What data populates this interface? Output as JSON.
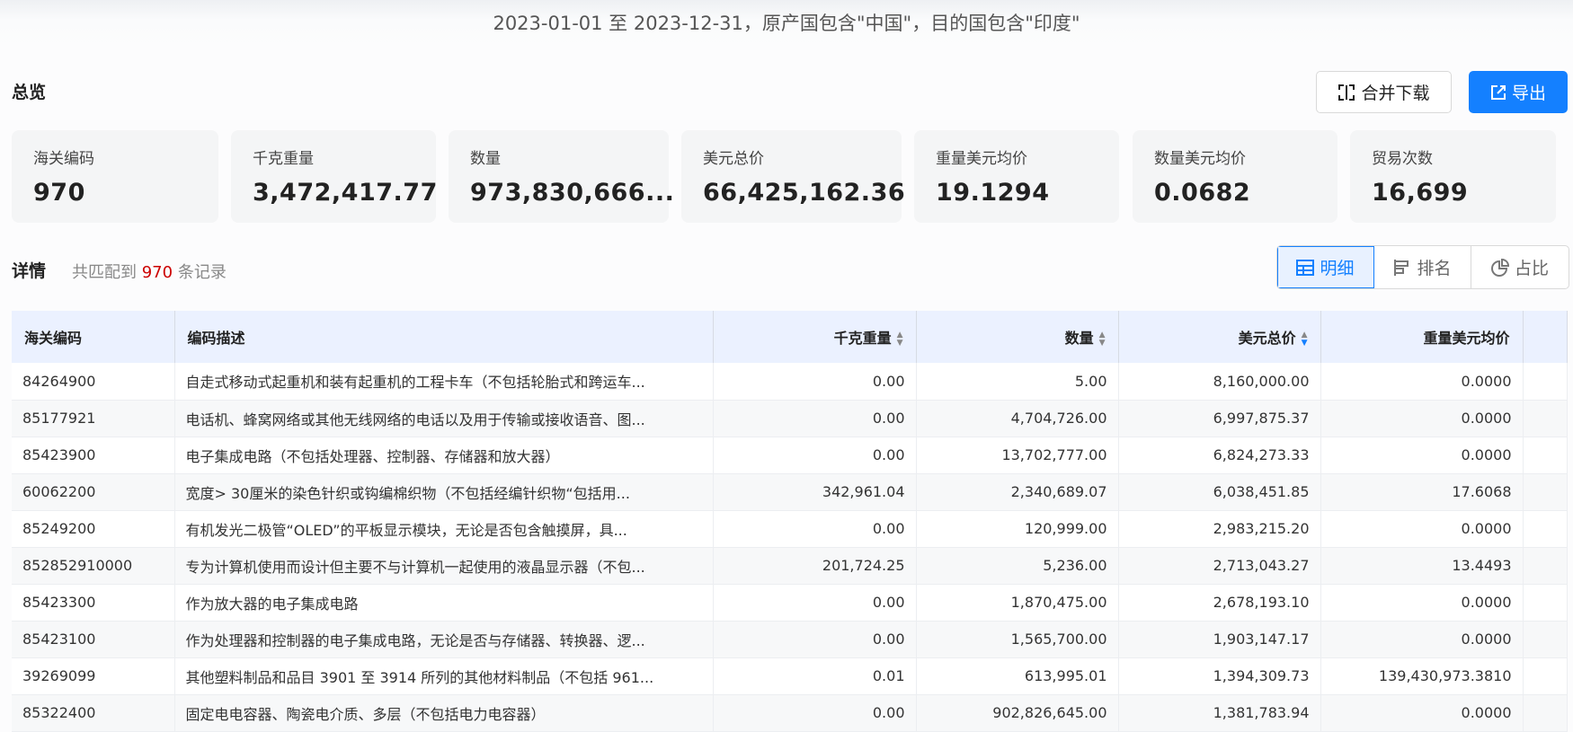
{
  "title": "2023-01-01 至 2023-12-31，原产国包含\"中国\"，目的国包含\"印度\"",
  "overview": {
    "label": "总览",
    "merge_download": "合并下载",
    "export": "导出"
  },
  "cards": [
    {
      "label": "海关编码",
      "value": "970"
    },
    {
      "label": "千克重量",
      "value": "3,472,417.77"
    },
    {
      "label": "数量",
      "value": "973,830,666..."
    },
    {
      "label": "美元总价",
      "value": "66,425,162.36"
    },
    {
      "label": "重量美元均价",
      "value": "19.1294"
    },
    {
      "label": "数量美元均价",
      "value": "0.0682"
    },
    {
      "label": "贸易次数",
      "value": "16,699"
    }
  ],
  "details": {
    "label": "详情",
    "match_prefix": "共匹配到",
    "match_count": "970",
    "match_suffix": "条记录",
    "views": [
      {
        "label": "明细",
        "active": true
      },
      {
        "label": "排名",
        "active": false
      },
      {
        "label": "占比",
        "active": false
      }
    ]
  },
  "accent": "#1480ff",
  "table": {
    "columns": [
      "海关编码",
      "编码描述",
      "千克重量",
      "数量",
      "美元总价",
      "重量美元均价"
    ],
    "sort": {
      "column": "美元总价",
      "direction": "desc"
    },
    "rows": [
      [
        "84264900",
        "自走式移动式起重机和装有起重机的工程卡车（不包括轮胎式和跨运车...",
        "0.00",
        "5.00",
        "8,160,000.00",
        "0.0000"
      ],
      [
        "85177921",
        "电话机、蜂窝网络或其他无线网络的电话以及用于传输或接收语音、图...",
        "0.00",
        "4,704,726.00",
        "6,997,875.37",
        "0.0000"
      ],
      [
        "85423900",
        "电子集成电路（不包括处理器、控制器、存储器和放大器）",
        "0.00",
        "13,702,777.00",
        "6,824,273.33",
        "0.0000"
      ],
      [
        "60062200",
        "宽度> 30厘米的染色针织或钩编棉织物（不包括经编针织物“包括用...",
        "342,961.04",
        "2,340,689.07",
        "6,038,451.85",
        "17.6068"
      ],
      [
        "85249200",
        "有机发光二极管“OLED”的平板显示模块，无论是否包含触摸屏，具...",
        "0.00",
        "120,999.00",
        "2,983,215.20",
        "0.0000"
      ],
      [
        "852852910000",
        "专为计算机使用而设计但主要不与计算机一起使用的液晶显示器（不包...",
        "201,724.25",
        "5,236.00",
        "2,713,043.27",
        "13.4493"
      ],
      [
        "85423300",
        "作为放大器的电子集成电路",
        "0.00",
        "1,870,475.00",
        "2,678,193.10",
        "0.0000"
      ],
      [
        "85423100",
        "作为处理器和控制器的电子集成电路，无论是否与存储器、转换器、逻...",
        "0.00",
        "1,565,700.00",
        "1,903,147.17",
        "0.0000"
      ],
      [
        "39269099",
        "其他塑料制品和品目 3901 至 3914 所列的其他材料制品（不包括 961...",
        "0.01",
        "613,995.01",
        "1,394,309.73",
        "139,430,973.3810"
      ],
      [
        "85322400",
        "固定电电容器、陶瓷电介质、多层（不包括电力电容器）",
        "0.00",
        "902,826,645.00",
        "1,381,783.94",
        "0.0000"
      ]
    ]
  }
}
